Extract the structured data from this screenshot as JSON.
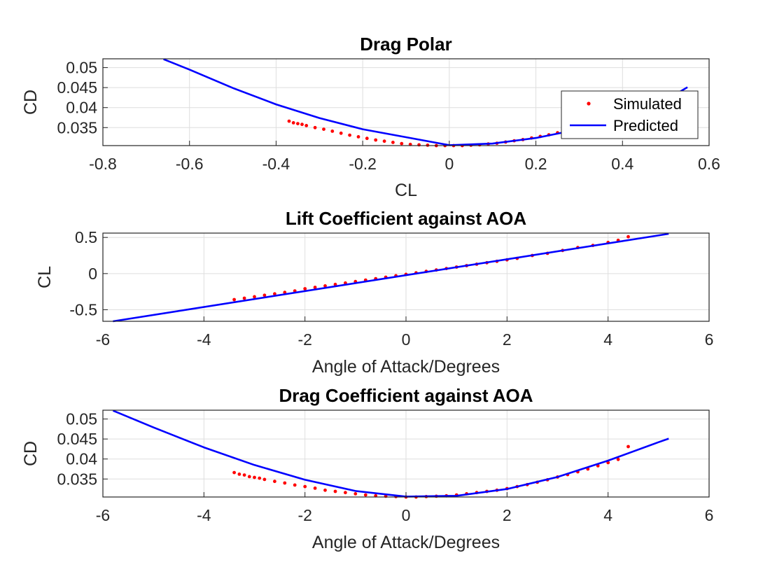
{
  "chart_data": [
    {
      "type": "scatter",
      "title": "Drag Polar",
      "xlabel": "CL",
      "ylabel": "CD",
      "xlim": [
        -0.8,
        0.6
      ],
      "ylim": [
        0.0305,
        0.0522
      ],
      "xticks": [
        -0.8,
        -0.6,
        -0.4,
        -0.2,
        0,
        0.2,
        0.4,
        0.6
      ],
      "yticks": [
        0.035,
        0.04,
        0.045,
        0.05
      ],
      "xtick_labels": [
        "-0.8",
        "-0.6",
        "-0.4",
        "-0.2",
        "0",
        "0.2",
        "0.4",
        "0.6"
      ],
      "ytick_labels": [
        "0.035",
        "0.04",
        "0.045",
        "0.05"
      ],
      "grid": true,
      "legend": {
        "position": "right",
        "entries": [
          {
            "label": "Simulated",
            "marker": "dot",
            "color": "#ff0000"
          },
          {
            "label": "Predicted",
            "marker": "line",
            "color": "#0000ff"
          }
        ]
      },
      "series": [
        {
          "name": "Simulated",
          "kind": "markers",
          "color": "#ff0000",
          "x": [
            -0.37,
            -0.36,
            -0.35,
            -0.34,
            -0.33,
            -0.31,
            -0.29,
            -0.27,
            -0.25,
            -0.23,
            -0.21,
            -0.19,
            -0.17,
            -0.15,
            -0.13,
            -0.11,
            -0.09,
            -0.07,
            -0.05,
            -0.03,
            -0.01,
            0.01,
            0.03,
            0.05,
            0.07,
            0.09,
            0.11,
            0.13,
            0.15,
            0.17,
            0.19,
            0.21,
            0.23,
            0.25,
            0.27
          ],
          "y": [
            0.0366,
            0.0362,
            0.036,
            0.0358,
            0.0355,
            0.035,
            0.0346,
            0.0341,
            0.0336,
            0.0331,
            0.0327,
            0.0323,
            0.0319,
            0.0316,
            0.0313,
            0.031,
            0.0308,
            0.0307,
            0.0306,
            0.0305,
            0.0305,
            0.0305,
            0.0305,
            0.0306,
            0.0307,
            0.0309,
            0.0311,
            0.0314,
            0.0317,
            0.032,
            0.0324,
            0.0328,
            0.0332,
            0.0337,
            0.0342
          ]
        },
        {
          "name": "Predicted",
          "kind": "line",
          "color": "#0000ff",
          "x": [
            -0.66,
            -0.6,
            -0.5,
            -0.4,
            -0.3,
            -0.2,
            -0.1,
            0,
            0.1,
            0.2,
            0.3,
            0.4,
            0.5,
            0.55
          ],
          "y": [
            0.0521,
            0.0495,
            0.0449,
            0.0408,
            0.0374,
            0.0346,
            0.0326,
            0.0306,
            0.031,
            0.0324,
            0.0346,
            0.0376,
            0.0419,
            0.0451
          ]
        }
      ]
    },
    {
      "type": "scatter",
      "title": "Lift Coefficient against AOA",
      "xlabel": "Angle of Attack/Degrees",
      "ylabel": "CL",
      "xlim": [
        -6,
        6
      ],
      "ylim": [
        -0.66,
        0.56
      ],
      "xticks": [
        -6,
        -4,
        -2,
        0,
        2,
        4,
        6
      ],
      "yticks": [
        -0.5,
        0,
        0.5
      ],
      "xtick_labels": [
        "-6",
        "-4",
        "-2",
        "0",
        "2",
        "4",
        "6"
      ],
      "ytick_labels": [
        "-0.5",
        "0",
        "0.5"
      ],
      "grid": true,
      "series": [
        {
          "name": "Simulated",
          "kind": "markers",
          "color": "#ff0000",
          "x": [
            -3.4,
            -3.2,
            -3.0,
            -2.8,
            -2.6,
            -2.4,
            -2.2,
            -2.0,
            -1.8,
            -1.6,
            -1.4,
            -1.2,
            -1.0,
            -0.8,
            -0.6,
            -0.4,
            -0.2,
            0,
            0.2,
            0.4,
            0.6,
            0.8,
            1.0,
            1.2,
            1.4,
            1.6,
            1.8,
            2.0,
            2.2,
            2.5,
            2.8,
            3.1,
            3.4,
            3.7,
            4.0,
            4.2,
            4.4
          ],
          "y": [
            -0.36,
            -0.34,
            -0.32,
            -0.3,
            -0.28,
            -0.26,
            -0.24,
            -0.21,
            -0.19,
            -0.17,
            -0.15,
            -0.13,
            -0.11,
            -0.09,
            -0.07,
            -0.05,
            -0.03,
            -0.01,
            0.01,
            0.03,
            0.05,
            0.07,
            0.09,
            0.11,
            0.13,
            0.15,
            0.17,
            0.19,
            0.21,
            0.25,
            0.28,
            0.32,
            0.36,
            0.39,
            0.43,
            0.46,
            0.51
          ]
        },
        {
          "name": "Predicted",
          "kind": "line",
          "color": "#0000ff",
          "x": [
            -5.8,
            5.2
          ],
          "y": [
            -0.66,
            0.55
          ]
        }
      ]
    },
    {
      "type": "scatter",
      "title": "Drag Coefficient against AOA",
      "xlabel": "Angle of Attack/Degrees",
      "ylabel": "CD",
      "xlim": [
        -6,
        6
      ],
      "ylim": [
        0.0305,
        0.0522
      ],
      "xticks": [
        -6,
        -4,
        -2,
        0,
        2,
        4,
        6
      ],
      "yticks": [
        0.035,
        0.04,
        0.045,
        0.05
      ],
      "xtick_labels": [
        "-6",
        "-4",
        "-2",
        "0",
        "2",
        "4",
        "6"
      ],
      "ytick_labels": [
        "0.035",
        "0.04",
        "0.045",
        "0.05"
      ],
      "grid": true,
      "series": [
        {
          "name": "Simulated",
          "kind": "markers",
          "color": "#ff0000",
          "x": [
            -3.4,
            -3.3,
            -3.2,
            -3.1,
            -3.0,
            -2.9,
            -2.8,
            -2.6,
            -2.4,
            -2.2,
            -2.0,
            -1.8,
            -1.6,
            -1.4,
            -1.2,
            -1.0,
            -0.8,
            -0.6,
            -0.4,
            -0.2,
            0,
            0.2,
            0.4,
            0.6,
            0.8,
            1.0,
            1.2,
            1.4,
            1.6,
            1.8,
            2.0,
            2.2,
            2.4,
            2.6,
            2.8,
            3.0,
            3.2,
            3.4,
            3.6,
            3.8,
            4.0,
            4.2,
            4.4
          ],
          "y": [
            0.0366,
            0.0362,
            0.036,
            0.0356,
            0.0354,
            0.0352,
            0.0349,
            0.0344,
            0.034,
            0.0335,
            0.0331,
            0.0327,
            0.0322,
            0.0319,
            0.0316,
            0.0313,
            0.031,
            0.0308,
            0.0307,
            0.0306,
            0.0305,
            0.0305,
            0.0306,
            0.0307,
            0.0308,
            0.031,
            0.0313,
            0.0316,
            0.0319,
            0.0322,
            0.0326,
            0.0331,
            0.0336,
            0.0342,
            0.0348,
            0.0355,
            0.0361,
            0.0368,
            0.0375,
            0.0383,
            0.0391,
            0.0399,
            0.0431
          ]
        },
        {
          "name": "Predicted",
          "kind": "line",
          "color": "#0000ff",
          "x": [
            -5.8,
            -5,
            -4,
            -3,
            -2,
            -1,
            0,
            1,
            2,
            3,
            4,
            5,
            5.2
          ],
          "y": [
            0.0521,
            0.0479,
            0.0429,
            0.0385,
            0.0348,
            0.032,
            0.0306,
            0.0308,
            0.0325,
            0.0355,
            0.0396,
            0.0442,
            0.0451
          ]
        }
      ]
    }
  ]
}
